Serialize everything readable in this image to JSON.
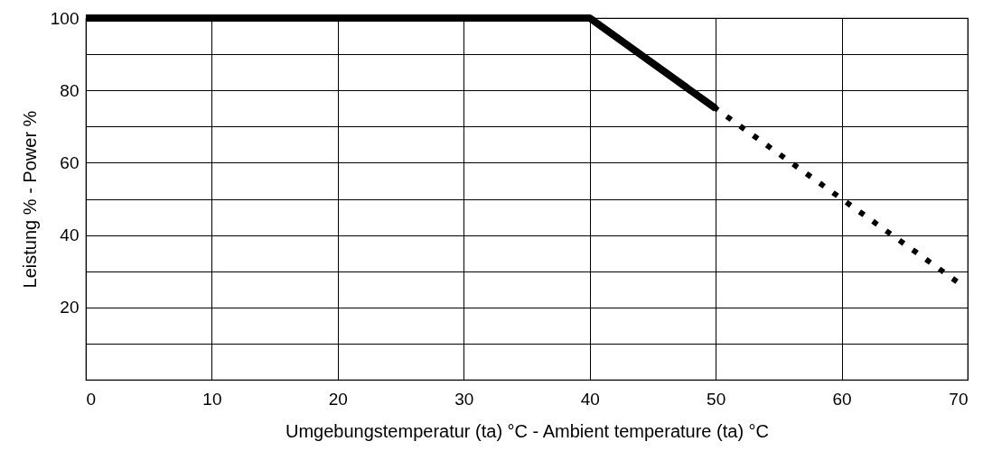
{
  "chart_data": {
    "type": "line",
    "xlabel": "Umgebungstemperatur (ta) °C - Ambient temperature (ta) °C",
    "ylabel": "Leistung % - Power %",
    "xlim": [
      0,
      70
    ],
    "ylim": [
      0,
      100
    ],
    "xticks": [
      0,
      10,
      20,
      30,
      40,
      50,
      60,
      70
    ],
    "yticks": [
      {
        "value": 0,
        "label": null
      },
      {
        "value": 10,
        "label": null
      },
      20,
      {
        "value": 30,
        "label": null
      },
      40,
      {
        "value": 50,
        "label": null
      },
      60,
      {
        "value": 70,
        "label": null
      },
      80,
      {
        "value": 90,
        "label": null
      },
      100
    ],
    "grid": true,
    "marker": "none",
    "series": [
      {
        "x": [
          0,
          40,
          50
        ],
        "values": [
          100,
          100,
          75
        ],
        "color": "#000000",
        "line_style": "solid"
      },
      {
        "x": [
          50,
          70
        ],
        "values": [
          75,
          25
        ],
        "color": "#000000",
        "line_style": "dotted"
      }
    ]
  }
}
